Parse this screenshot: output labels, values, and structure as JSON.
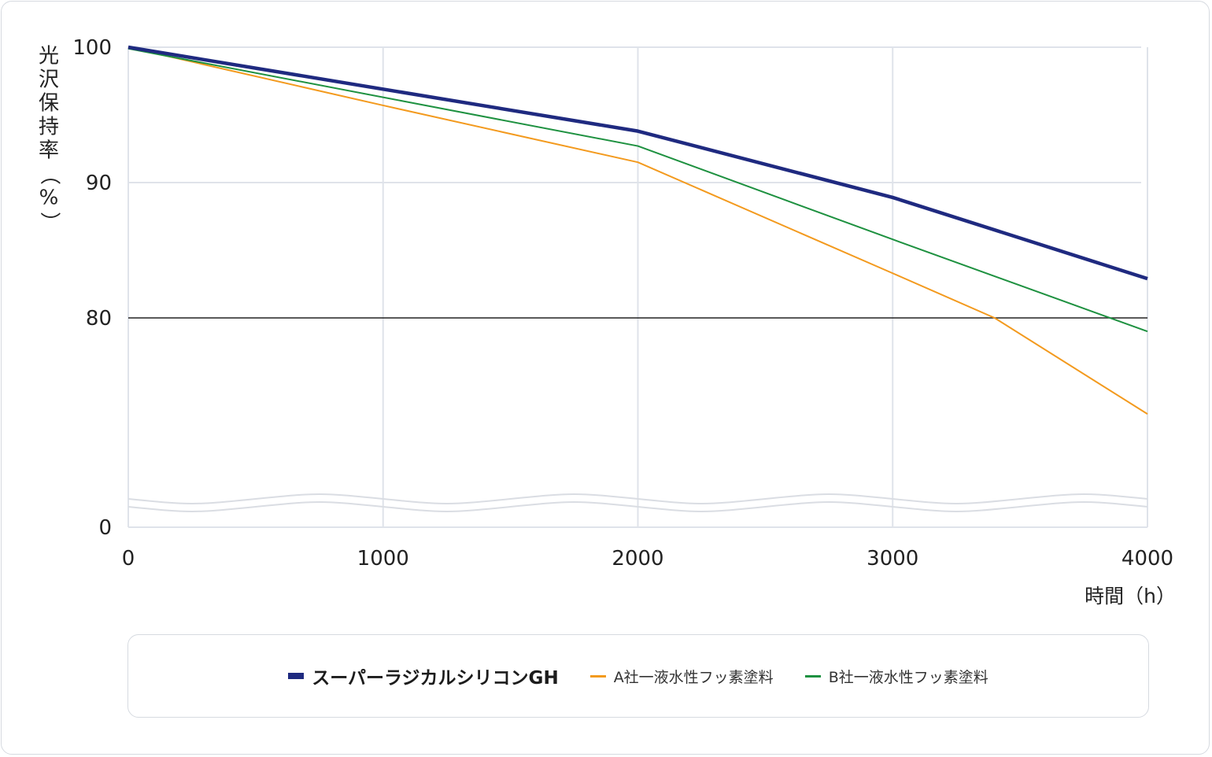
{
  "chart_data": {
    "type": "line",
    "ylabel": "光沢保持率（%）",
    "xlabel": "時間（h）",
    "x": [
      0,
      2000,
      3000,
      4000
    ],
    "xticks": [
      "0",
      "1000",
      "2000",
      "3000",
      "4000"
    ],
    "xtick_values": [
      0,
      1000,
      2000,
      3000,
      4000
    ],
    "yticks": [
      "100",
      "90",
      "80",
      "0"
    ],
    "ytick_values": [
      100,
      90,
      80,
      0
    ],
    "y_axis_break": true,
    "xlim": [
      0,
      4000
    ],
    "ylim": [
      0,
      100
    ],
    "reference_line": 80,
    "grid": true,
    "legend_position": "bottom",
    "series": [
      {
        "name": "スーパーラジカルシリコンGH",
        "color": "#1f2a80",
        "x": [
          0,
          2000,
          3000,
          4000
        ],
        "values": [
          100,
          93.8,
          88.9,
          82.9
        ],
        "bold": true
      },
      {
        "name": "A社一液水性フッ素塗料",
        "color": "#f39a1e",
        "x": [
          0,
          1000,
          2000,
          3000,
          3400,
          4000
        ],
        "values": [
          100,
          95.7,
          91.5,
          83.3,
          80.0,
          72.9
        ],
        "bold": false
      },
      {
        "name": "B社一液水性フッ素塗料",
        "color": "#1e9140",
        "x": [
          0,
          2000,
          3000,
          4000
        ],
        "values": [
          99.9,
          92.7,
          85.8,
          79.0
        ],
        "bold": false
      }
    ]
  }
}
